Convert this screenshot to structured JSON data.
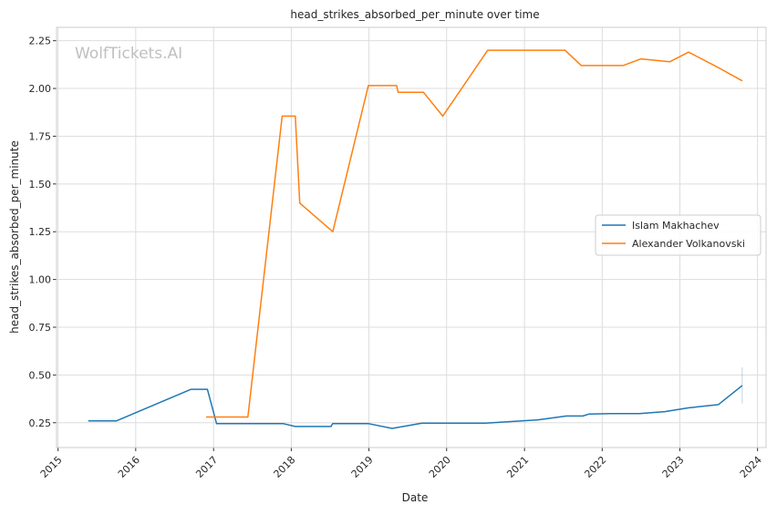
{
  "chart_data": {
    "type": "line",
    "title": "head_strikes_absorbed_per_minute over time",
    "xlabel": "Date",
    "ylabel": "head_strikes_absorbed_per_minute",
    "watermark": "WolfTickets.AI",
    "xlim": [
      "2014-12-25",
      "2024-02-10"
    ],
    "ylim": [
      0.12,
      2.32
    ],
    "x_ticks": [
      "2015",
      "2016",
      "2017",
      "2018",
      "2019",
      "2020",
      "2021",
      "2022",
      "2023",
      "2024"
    ],
    "y_ticks": [
      0.25,
      0.5,
      0.75,
      1.0,
      1.25,
      1.5,
      1.75,
      2.0,
      2.25
    ],
    "y_tick_labels": [
      "0.25",
      "0.50",
      "0.75",
      "1.00",
      "1.25",
      "1.50",
      "1.75",
      "2.00",
      "2.25"
    ],
    "grid": true,
    "legend_position": "center-right",
    "series": [
      {
        "name": "Islam Makhachev",
        "color": "#1f77b4",
        "x": [
          "2015-05-23",
          "2015-10-03",
          "2016-09-17",
          "2016-12-03",
          "2017-01-15",
          "2017-11-25",
          "2018-01-20",
          "2018-07-07",
          "2018-07-14",
          "2018-12-31",
          "2019-04-20",
          "2019-09-07",
          "2020-07-01",
          "2021-03-06",
          "2021-07-17",
          "2021-10-02",
          "2021-10-30",
          "2022-02-12",
          "2022-06-25",
          "2022-10-22",
          "2023-02-12",
          "2023-07-01",
          "2023-10-21"
        ],
        "values": [
          0.26,
          0.26,
          0.425,
          0.425,
          0.245,
          0.245,
          0.23,
          0.23,
          0.245,
          0.245,
          0.22,
          0.248,
          0.248,
          0.265,
          0.285,
          0.285,
          0.295,
          0.298,
          0.298,
          0.308,
          0.328,
          0.345,
          0.445
        ]
      },
      {
        "name": "Alexander Volkanovski",
        "color": "#ff7f0e",
        "x": [
          "2016-11-27",
          "2017-06-11",
          "2017-11-19",
          "2018-01-20",
          "2018-02-10",
          "2018-07-15",
          "2018-12-29",
          "2019-05-11",
          "2019-05-18",
          "2019-09-14",
          "2019-12-14",
          "2020-07-12",
          "2021-07-10",
          "2021-09-25",
          "2022-04-09",
          "2022-07-02",
          "2022-11-15",
          "2023-02-11",
          "2023-07-08",
          "2023-10-21"
        ],
        "values": [
          0.28,
          0.28,
          1.855,
          1.855,
          1.4,
          1.25,
          2.015,
          2.015,
          1.98,
          1.98,
          1.855,
          2.2,
          2.2,
          2.12,
          2.12,
          2.155,
          2.14,
          2.19,
          2.105,
          2.04
        ]
      }
    ]
  }
}
